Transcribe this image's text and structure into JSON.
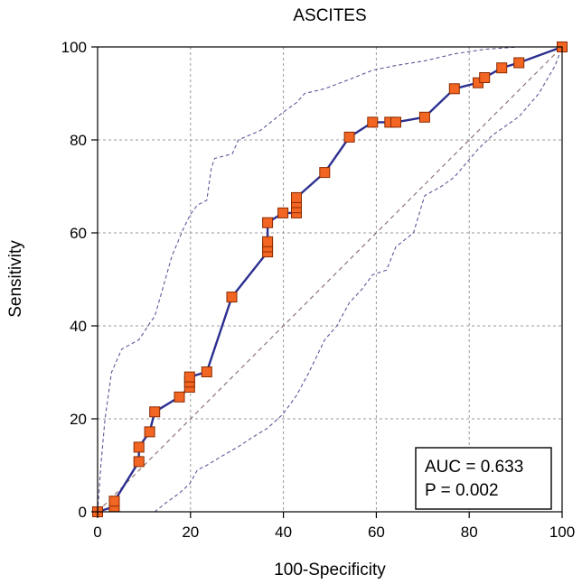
{
  "chart_data": {
    "type": "line",
    "title": "ASCITES",
    "xlabel": "100-Specificity",
    "ylabel": "Sensitivity",
    "xlim": [
      0,
      100
    ],
    "ylim": [
      0,
      100
    ],
    "xticks": [
      0,
      20,
      40,
      60,
      80,
      100
    ],
    "yticks": [
      0,
      20,
      40,
      60,
      80,
      100
    ],
    "x_tick_labels": [
      "0",
      "20",
      "40",
      "60",
      "80",
      "100"
    ],
    "y_tick_labels": [
      "0",
      "20",
      "40",
      "60",
      "80",
      "100"
    ],
    "grid": true,
    "annotations": {
      "auc": "AUC = 0.633",
      "p": "P = 0.002",
      "placement": "bottom-right"
    },
    "series": [
      {
        "points": [
          [
            0,
            0
          ],
          [
            3.6,
            1.1
          ],
          [
            3.6,
            2.3
          ],
          [
            8.9,
            10.8
          ],
          [
            8.9,
            13.9
          ],
          [
            11.2,
            17.2
          ],
          [
            12.3,
            21.5
          ],
          [
            17.6,
            24.7
          ],
          [
            19.8,
            26.8
          ],
          [
            19.8,
            27.9
          ],
          [
            19.8,
            29.0
          ],
          [
            23.5,
            30.1
          ],
          [
            28.9,
            46.2
          ],
          [
            36.6,
            55.9
          ],
          [
            36.6,
            57.0
          ],
          [
            36.6,
            58.1
          ],
          [
            36.6,
            62.2
          ],
          [
            39.9,
            64.3
          ],
          [
            42.8,
            64.3
          ],
          [
            42.8,
            65.4
          ],
          [
            42.8,
            66.5
          ],
          [
            42.8,
            67.6
          ],
          [
            48.9,
            73.0
          ],
          [
            54.2,
            80.6
          ],
          [
            59.2,
            83.8
          ],
          [
            62.9,
            83.8
          ],
          [
            64.2,
            83.8
          ],
          [
            70.4,
            84.9
          ],
          [
            76.8,
            91.0
          ],
          [
            81.9,
            92.3
          ],
          [
            83.3,
            93.4
          ],
          [
            87.0,
            95.5
          ],
          [
            90.7,
            96.6
          ],
          [
            100,
            100
          ]
        ]
      }
    ],
    "ci_upper": [
      [
        0,
        0
      ],
      [
        0.7,
        10
      ],
      [
        1.6,
        20
      ],
      [
        3,
        30
      ],
      [
        5.2,
        35
      ],
      [
        8.9,
        37
      ],
      [
        11.5,
        41
      ],
      [
        12.3,
        42
      ],
      [
        14,
        48
      ],
      [
        16,
        55
      ],
      [
        18.5,
        61
      ],
      [
        20,
        64
      ],
      [
        21.5,
        66
      ],
      [
        23.5,
        67
      ],
      [
        24.5,
        74
      ],
      [
        25.2,
        76
      ],
      [
        29,
        77
      ],
      [
        30.3,
        80
      ],
      [
        35,
        82
      ],
      [
        40,
        86
      ],
      [
        42.8,
        88
      ],
      [
        44.6,
        90
      ],
      [
        48.9,
        91
      ],
      [
        54.2,
        93
      ],
      [
        59.2,
        95
      ],
      [
        64.2,
        96
      ],
      [
        70.4,
        97
      ],
      [
        76.8,
        98.5
      ],
      [
        83.3,
        99.5
      ],
      [
        90.7,
        100
      ],
      [
        100,
        100
      ]
    ],
    "ci_lower": [
      [
        0,
        0
      ],
      [
        12.3,
        0
      ],
      [
        14.8,
        2
      ],
      [
        17.6,
        4
      ],
      [
        19.8,
        6
      ],
      [
        21.5,
        9
      ],
      [
        23.5,
        10
      ],
      [
        26.8,
        12
      ],
      [
        30.3,
        14
      ],
      [
        33.3,
        16
      ],
      [
        36.6,
        18
      ],
      [
        39.9,
        21
      ],
      [
        42.8,
        25
      ],
      [
        45.5,
        30
      ],
      [
        48.9,
        37
      ],
      [
        51.5,
        40
      ],
      [
        54.2,
        45
      ],
      [
        57,
        48
      ],
      [
        59.2,
        51
      ],
      [
        62.2,
        52
      ],
      [
        64.2,
        57
      ],
      [
        68,
        60
      ],
      [
        70.4,
        68
      ],
      [
        74,
        70
      ],
      [
        76.8,
        72
      ],
      [
        81.9,
        78
      ],
      [
        85,
        81
      ],
      [
        90.7,
        85
      ],
      [
        95,
        90
      ],
      [
        98.5,
        96
      ],
      [
        100,
        100
      ]
    ],
    "colors": {
      "roc_line": "#2b2f8f",
      "marker_fill": "#f26522",
      "marker_stroke": "#8a2a00",
      "ci_line": "#5a5a9a",
      "diagonal": "#8a6a6a"
    }
  }
}
